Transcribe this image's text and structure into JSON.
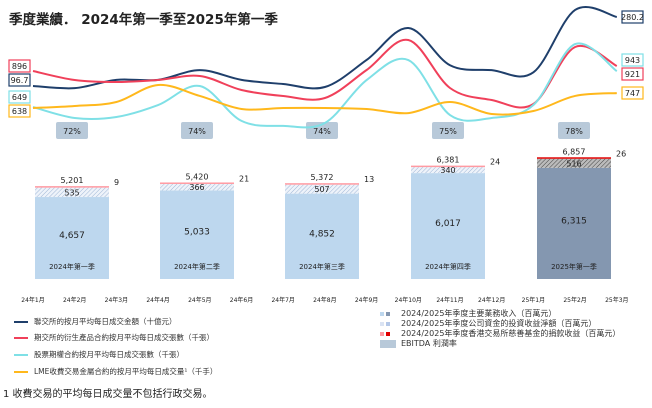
{
  "title": "季度業績． 2024年第一季至2025年第一季",
  "chart_data": [
    {
      "type": "line",
      "x": [
        "24年1月",
        "24年2月",
        "24年3月",
        "24年4月",
        "24年5月",
        "24年6月",
        "24年7月",
        "24年8月",
        "24年9月",
        "24年10月",
        "24年11月",
        "24年12月",
        "25年1月",
        "25年2月",
        "25年3月"
      ],
      "series": [
        {
          "name": "聯交所的按月平均每日成交金額（十億元）",
          "color": "#1f3f6b",
          "values": [
            96.7,
            91,
            113,
            113,
            139,
            113,
            102,
            94,
            166,
            251,
            152,
            139,
            133,
            299,
            280.2
          ],
          "start_label": "96.7",
          "end_label": "280.2"
        },
        {
          "name": "期交所的衍生產品合約按月平均每日成交張數（千張）",
          "color": "#f0405a",
          "values": [
            896,
            851,
            841,
            851,
            871,
            801,
            771,
            761,
            901,
            1051,
            811,
            751,
            731,
            1016,
            921
          ],
          "start_label": "896",
          "end_label": "921"
        },
        {
          "name": "股票期權合約按月平均每日成交張數（千張）",
          "color": "#7fe0e6",
          "values": [
            649,
            559,
            567,
            665,
            821,
            535,
            494,
            518,
            870,
            1034,
            583,
            559,
            665,
            1165,
            943
          ],
          "start_label": "649",
          "end_label": "943"
        },
        {
          "name": "LME收費交易金屬合約的按月平均每日成交量¹（千手）",
          "color": "#ffb81c",
          "values": [
            638,
            653,
            682,
            806,
            726,
            631,
            638,
            638,
            631,
            601,
            682,
            594,
            616,
            726,
            747
          ],
          "start_label": "638",
          "end_label": "747"
        }
      ]
    },
    {
      "type": "bar",
      "categories": [
        "2024年第一季",
        "2024年第二季",
        "2024年第三季",
        "2024年第四季",
        "2025年第一季"
      ],
      "ebitda_margin": [
        "72%",
        "74%",
        "74%",
        "75%",
        "78%"
      ],
      "series": [
        {
          "name": "2024/2025年季度主要業務收入（百萬元）",
          "values": [
            4657,
            5033,
            4852,
            6017,
            6315
          ],
          "labels": [
            "4,657",
            "5,033",
            "4,852",
            "6,017",
            "6,315"
          ]
        },
        {
          "name": "2024/2025年季度公司資金的投資收益淨額（百萬元）",
          "values": [
            535,
            366,
            507,
            340,
            516
          ]
        },
        {
          "name": "2024/2025年季度香港交易所慈善基金的捐款收益（百萬元）",
          "values": [
            9,
            21,
            13,
            24,
            26
          ]
        }
      ],
      "totals": [
        "5,201",
        "5,420",
        "5,372",
        "6,381",
        "6,857"
      ],
      "colors": {
        "main": "#bdd7ee",
        "main_highlight": "#8497b0",
        "investment": "#dae3f3",
        "donation": "#ff9aa2",
        "donation_highlight": "#e00000"
      }
    }
  ],
  "legend_right": [
    "2024/2025年季度主要業務收入（百萬元）",
    "2024/2025年季度公司資金的投資收益淨額（百萬元）",
    "2024/2025年季度香港交易所慈善基金的捐款收益（百萬元）",
    "EBITDA 利潤率"
  ],
  "footnote": "1 收費交易的平均每日成交量不包括行政交易。"
}
